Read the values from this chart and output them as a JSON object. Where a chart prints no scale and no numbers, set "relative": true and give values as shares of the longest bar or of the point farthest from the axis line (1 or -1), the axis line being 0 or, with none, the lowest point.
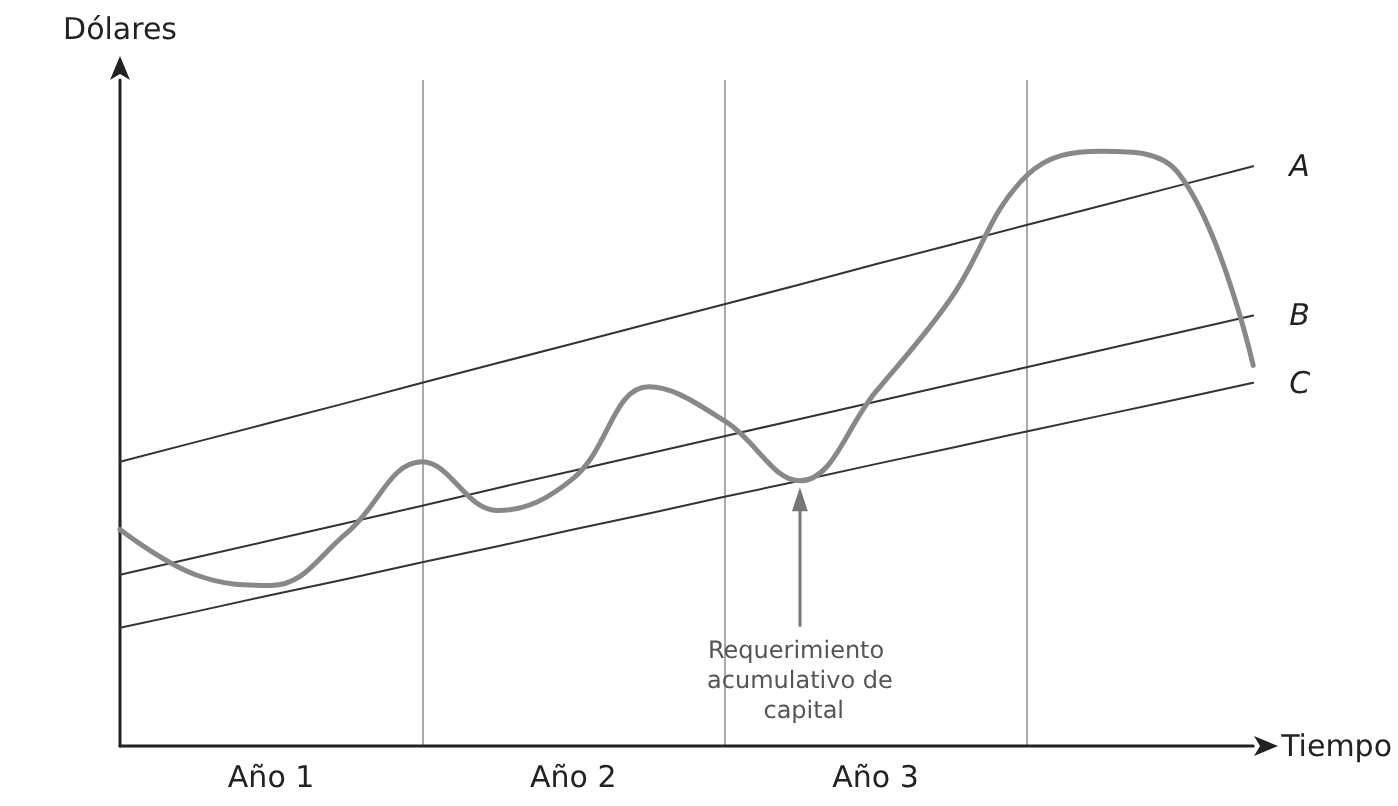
{
  "chart_data": {
    "type": "line",
    "relative": true,
    "xlabel": "Tiempo",
    "ylabel": "Dólares",
    "marker": "none",
    "grid": "x",
    "legend": false,
    "categories": [
      null,
      null,
      "Año 1",
      null,
      null,
      null,
      "Año 2",
      null,
      null,
      null,
      "Año 3",
      null,
      null,
      null,
      null,
      null
    ],
    "annotations": [
      "Requerimiento acumulativo de capital"
    ],
    "series": [
      {
        "name": "A",
        "color": "#333333",
        "values": [
          0.478,
          0.511,
          0.544,
          0.577,
          0.611,
          0.644,
          0.677,
          0.71,
          0.743,
          0.776,
          0.81,
          0.843,
          0.876,
          0.909,
          0.942,
          0.975
        ]
      },
      {
        "name": "B",
        "color": "#333333",
        "values": [
          0.288,
          0.317,
          0.346,
          0.375,
          0.404,
          0.434,
          0.463,
          0.492,
          0.521,
          0.55,
          0.579,
          0.608,
          0.637,
          0.666,
          0.695,
          0.724
        ]
      },
      {
        "name": "C",
        "color": "#333333",
        "values": [
          0.199,
          0.226,
          0.254,
          0.281,
          0.309,
          0.336,
          0.364,
          0.391,
          0.419,
          0.446,
          0.474,
          0.501,
          0.529,
          0.556,
          0.583,
          0.611
        ]
      },
      {
        "color": "#888888",
        "values": [
          0.364,
          0.288,
          0.27,
          0.358,
          0.478,
          0.396,
          0.45,
          0.604,
          0.547,
          0.446,
          0.595,
          0.753,
          0.959,
          1,
          0.965,
          0.64
        ]
      }
    ]
  }
}
